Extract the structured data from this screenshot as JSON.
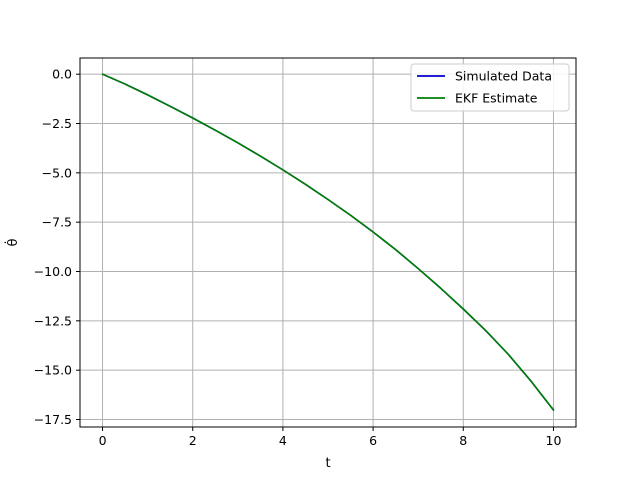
{
  "chart_data": {
    "type": "line",
    "xlabel": "t",
    "ylabel": "θ̇",
    "xlim": [
      -0.5,
      10.5
    ],
    "ylim": [
      -17.88,
      0.82
    ],
    "xticks": [
      0,
      2,
      4,
      6,
      8,
      10
    ],
    "yticks": [
      0.0,
      -2.5,
      -5.0,
      -7.5,
      -10.0,
      -12.5,
      -15.0,
      -17.5
    ],
    "ytick_labels": [
      "0.0",
      "−2.5",
      "−5.0",
      "−7.5",
      "−10.0",
      "−12.5",
      "−15.0",
      "−17.5"
    ],
    "xtick_labels": [
      "0",
      "2",
      "4",
      "6",
      "8",
      "10"
    ],
    "grid": true,
    "legend_position": "top-right",
    "x": [
      0,
      0.5,
      1,
      1.5,
      2,
      2.5,
      3,
      3.5,
      4,
      4.5,
      5,
      5.5,
      6,
      6.5,
      7,
      7.5,
      8,
      8.5,
      9,
      9.5,
      10
    ],
    "series": [
      {
        "name": "Simulated Data",
        "color": "#0000cc",
        "values": [
          0.0,
          -0.5,
          -1.05,
          -1.63,
          -2.22,
          -2.84,
          -3.48,
          -4.15,
          -4.85,
          -5.58,
          -6.35,
          -7.15,
          -8.0,
          -8.89,
          -9.85,
          -10.85,
          -11.9,
          -13.0,
          -14.2,
          -15.55,
          -17.02
        ]
      },
      {
        "name": "EKF Estimate",
        "color": "#008000",
        "values": [
          0.0,
          -0.5,
          -1.05,
          -1.63,
          -2.22,
          -2.84,
          -3.48,
          -4.15,
          -4.85,
          -5.58,
          -6.35,
          -7.15,
          -8.0,
          -8.89,
          -9.85,
          -10.85,
          -11.9,
          -13.0,
          -14.2,
          -15.55,
          -17.02
        ]
      }
    ]
  }
}
